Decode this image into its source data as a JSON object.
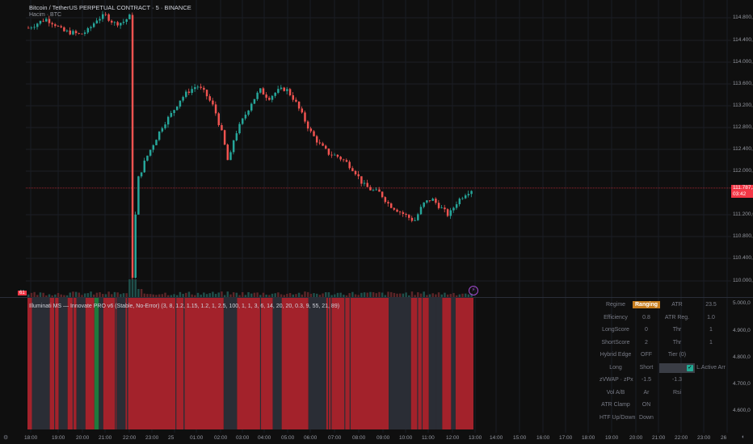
{
  "header": {
    "symbol_title": "Bitcoin / TetherUS PERPETUAL CONTRACT · 5 · BINANCE",
    "volume_label": "Hacim · BTC"
  },
  "price_axis": {
    "labels": [
      "114.800,0",
      "114.400,0",
      "114.000,0",
      "113.600,0",
      "113.200,0",
      "112.800,0",
      "112.400,0",
      "112.000,0",
      "111.200,0",
      "110.800,0",
      "110.400,0",
      "110.000,0"
    ],
    "current_price": "111.787,2",
    "countdown": "03:42"
  },
  "indicator": {
    "title": "Illuminati MS — Innovate PRO v6 (Stable, No-Error) (3, 8, 1.2, 1.15, 1.2, 1, 2.5, 100, 1, 1, 3, 6, 14, 20, 20, 0.3, 9, 55, 21, 89)",
    "scale_labels": [
      "5.000,0",
      "4.900,0",
      "4.800,0",
      "4.700,0",
      "4.600,0"
    ],
    "badge_left": "61"
  },
  "table": {
    "rows": [
      [
        "Regime",
        "Ranging",
        "ATR",
        "23.5"
      ],
      [
        "Efficiency",
        "0.8",
        "ATR Reg.",
        "1.0"
      ],
      [
        "LongScore",
        "0",
        "Thr",
        "1"
      ],
      [
        "ShortScore",
        "2",
        "Thr",
        "1"
      ],
      [
        "Hybrid Edge",
        "OFF",
        "Tier (0)",
        ""
      ],
      [
        "Long",
        "Short",
        "",
        "L.Active Arr"
      ],
      [
        "zVWAP · zPx",
        "-1.5",
        "-1.3",
        ""
      ],
      [
        "Vol A/B",
        "Ar",
        "Rsi",
        ""
      ],
      [
        "ATR Clamp",
        "ON",
        "",
        ""
      ],
      [
        "HTF Up/Down",
        "Down",
        "",
        ""
      ]
    ]
  },
  "time_axis": {
    "labels": [
      "18:00",
      "19:00",
      "20:00",
      "21:00",
      "22:00",
      "23:00",
      "25",
      "01:00",
      "02:00",
      "03:00",
      "04:00",
      "05:00",
      "06:00",
      "07:00",
      "08:00",
      "09:00",
      "10:00",
      "11:00",
      "12:00",
      "13:00",
      "14:00",
      "15:00",
      "16:00",
      "17:00",
      "18:00",
      "19:00",
      "20:00",
      "21:00",
      "22:00",
      "23:00",
      "26"
    ]
  },
  "colors": {
    "up": "#26a69a",
    "down": "#ef5350",
    "regime_red": "#a3222b",
    "regime_gray": "#2a2d35",
    "regime_green": "#1f7a3d"
  },
  "chart_data": {
    "type": "candlestick",
    "title": "Bitcoin / TetherUS PERPETUAL CONTRACT · 5 · BINANCE",
    "ylim": [
      109900,
      115000
    ],
    "close_path": [
      [
        0,
        114620
      ],
      [
        3,
        114700
      ],
      [
        6,
        114780
      ],
      [
        9,
        114700
      ],
      [
        12,
        114560
      ],
      [
        15,
        114540
      ],
      [
        18,
        114500
      ],
      [
        21,
        114580
      ],
      [
        24,
        114780
      ],
      [
        27,
        114840
      ],
      [
        30,
        114700
      ],
      [
        33,
        114720
      ],
      [
        36,
        114850
      ],
      [
        36.5,
        110300
      ],
      [
        38,
        111900
      ],
      [
        41,
        112300
      ],
      [
        44,
        112600
      ],
      [
        47,
        112900
      ],
      [
        50,
        113100
      ],
      [
        53,
        113350
      ],
      [
        56,
        113500
      ],
      [
        59,
        113600
      ],
      [
        62,
        113450
      ],
      [
        65,
        113200
      ],
      [
        68,
        112700
      ],
      [
        70,
        112200
      ],
      [
        72,
        112700
      ],
      [
        75,
        113000
      ],
      [
        78,
        113300
      ],
      [
        81,
        113520
      ],
      [
        84,
        113380
      ],
      [
        87,
        113500
      ],
      [
        90,
        113550
      ],
      [
        93,
        113350
      ],
      [
        96,
        113050
      ],
      [
        99,
        112750
      ],
      [
        102,
        112550
      ],
      [
        105,
        112400
      ],
      [
        108,
        112350
      ],
      [
        111,
        112250
      ],
      [
        114,
        112100
      ],
      [
        117,
        111850
      ],
      [
        120,
        111750
      ],
      [
        123,
        111700
      ],
      [
        126,
        111500
      ],
      [
        129,
        111400
      ],
      [
        132,
        111300
      ],
      [
        135,
        111200
      ],
      [
        138,
        111500
      ],
      [
        141,
        111600
      ],
      [
        144,
        111450
      ],
      [
        147,
        111300
      ],
      [
        150,
        111550
      ],
      [
        153,
        111700
      ],
      [
        156,
        111787
      ]
    ],
    "ohlc": [
      [
        114780,
        114900,
        114700,
        114850
      ],
      [
        114850,
        114860,
        110000,
        110200
      ],
      [
        110200,
        112000,
        109950,
        111800
      ]
    ],
    "volume_spike_index": 36,
    "regime_segments": [
      [
        "red",
        0
      ],
      [
        "gray",
        1
      ],
      [
        "red",
        5
      ],
      [
        "gray",
        7
      ],
      [
        "red",
        9
      ],
      [
        "gray",
        11
      ],
      [
        "red",
        13
      ],
      [
        "green",
        15
      ],
      [
        "gray",
        16
      ],
      [
        "red",
        17
      ],
      [
        "gray",
        20
      ],
      [
        "red",
        22
      ],
      [
        "gray",
        44
      ],
      [
        "red",
        47
      ],
      [
        "gray",
        55
      ],
      [
        "red",
        57
      ],
      [
        "gray",
        63
      ],
      [
        "red",
        67
      ],
      [
        "gray",
        81
      ],
      [
        "red",
        86
      ],
      [
        "gray",
        90
      ],
      [
        "red",
        93
      ],
      [
        "gray",
        95
      ],
      [
        "red",
        96
      ],
      [
        "gray",
        100
      ]
    ]
  }
}
